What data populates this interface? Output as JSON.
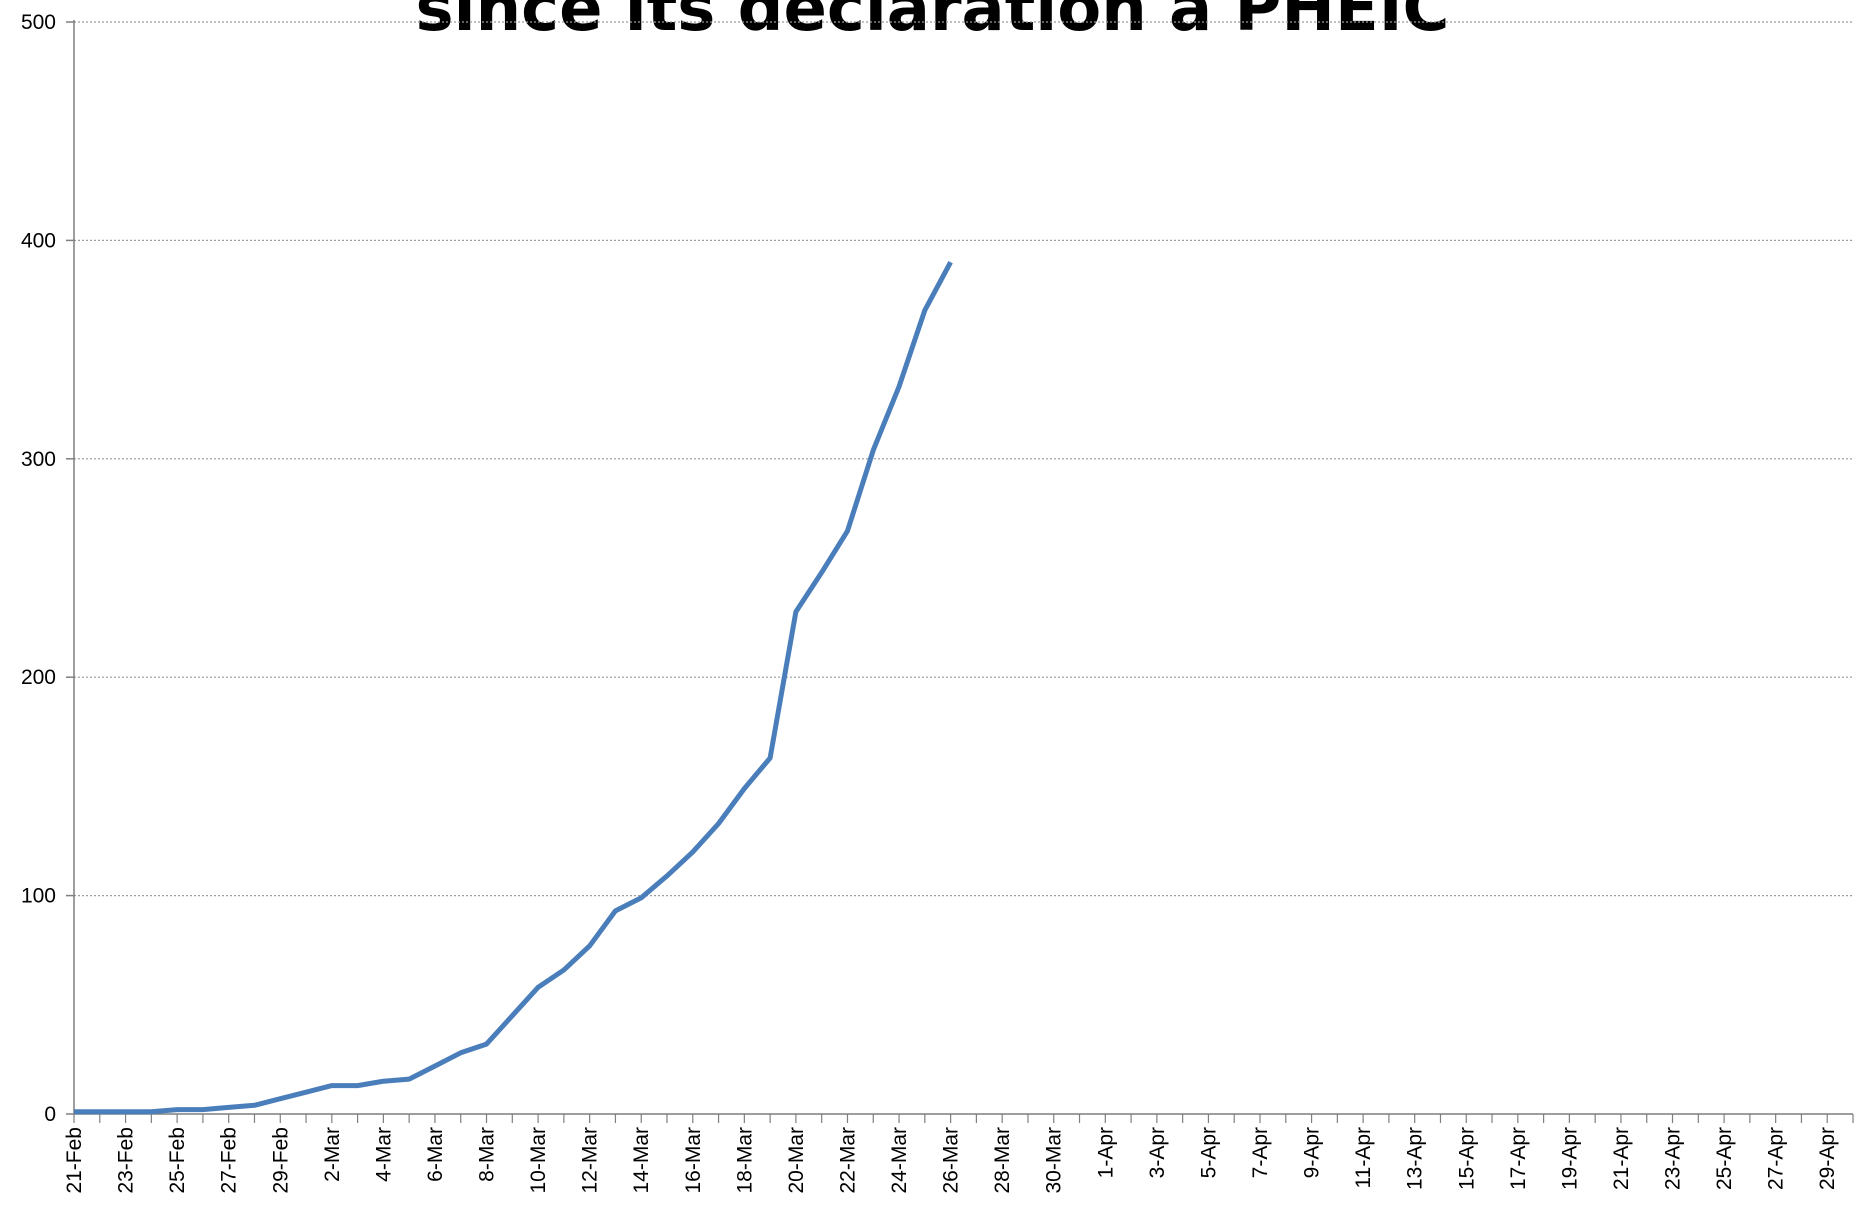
{
  "chart_data": {
    "type": "line",
    "title": "since its declaration a PHEIC",
    "xlabel": "",
    "ylabel": "",
    "ylim": [
      0,
      500
    ],
    "yticks": [
      0,
      100,
      200,
      300,
      400,
      500
    ],
    "grid": true,
    "x_tick_labels": [
      "21-Feb",
      "23-Feb",
      "25-Feb",
      "27-Feb",
      "29-Feb",
      "2-Mar",
      "4-Mar",
      "6-Mar",
      "8-Mar",
      "10-Mar",
      "12-Mar",
      "14-Mar",
      "16-Mar",
      "18-Mar",
      "20-Mar",
      "22-Mar",
      "24-Mar",
      "26-Mar",
      "28-Mar",
      "30-Mar",
      "1-Apr",
      "3-Apr",
      "5-Apr",
      "7-Apr",
      "9-Apr",
      "11-Apr",
      "13-Apr",
      "15-Apr",
      "17-Apr",
      "19-Apr",
      "21-Apr",
      "23-Apr",
      "25-Apr",
      "27-Apr",
      "29-Apr"
    ],
    "x_range": [
      "21-Feb",
      "30-Apr"
    ],
    "colors": {
      "series": "#4a7ebb",
      "grid": "#9a9a9a",
      "axis": "#7f7f7f"
    },
    "series": [
      {
        "x": [
          "21-Feb",
          "22-Feb",
          "23-Feb",
          "24-Feb",
          "25-Feb",
          "26-Feb",
          "27-Feb",
          "28-Feb",
          "29-Feb",
          "1-Mar",
          "2-Mar",
          "3-Mar",
          "4-Mar",
          "5-Mar",
          "6-Mar",
          "7-Mar",
          "8-Mar",
          "9-Mar",
          "10-Mar",
          "11-Mar",
          "12-Mar",
          "13-Mar",
          "14-Mar",
          "15-Mar",
          "16-Mar",
          "17-Mar",
          "18-Mar",
          "19-Mar",
          "20-Mar",
          "21-Mar",
          "22-Mar",
          "23-Mar",
          "24-Mar",
          "25-Mar",
          "26-Mar"
        ],
        "values": [
          1,
          1,
          1,
          1,
          2,
          2,
          3,
          4,
          7,
          10,
          13,
          13,
          15,
          16,
          22,
          28,
          32,
          45,
          58,
          66,
          77,
          93,
          99,
          109,
          120,
          133,
          149,
          163,
          230,
          248,
          267,
          304,
          333,
          368,
          390
        ]
      }
    ]
  }
}
